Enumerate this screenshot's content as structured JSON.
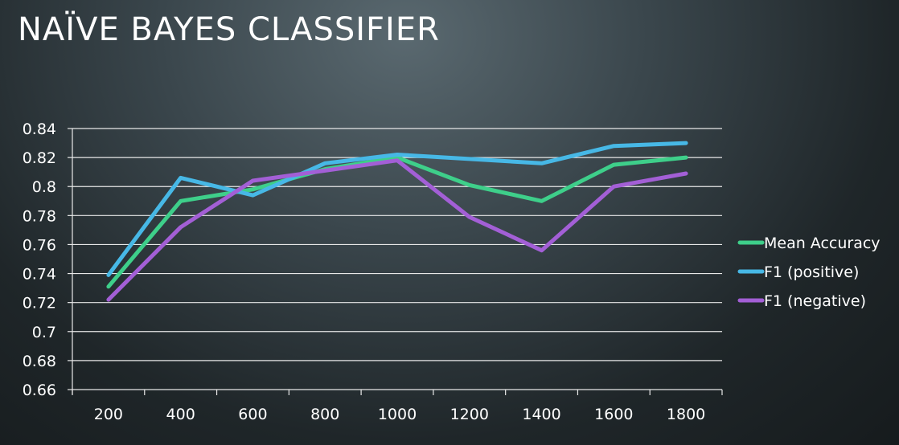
{
  "slide": {
    "title": "NAÏVE BAYES CLASSIFIER"
  },
  "chart_data": {
    "type": "line",
    "title": "",
    "xlabel": "",
    "ylabel": "",
    "x": [
      200,
      400,
      600,
      800,
      1000,
      1200,
      1400,
      1600,
      1800
    ],
    "x_tick_labels": [
      "200",
      "400",
      "600",
      "800",
      "1000",
      "1200",
      "1400",
      "1600",
      "1800"
    ],
    "ylim": [
      0.66,
      0.84
    ],
    "y_ticks": [
      0.66,
      0.68,
      0.7,
      0.72,
      0.74,
      0.76,
      0.78,
      0.8,
      0.82,
      0.84
    ],
    "y_tick_labels": [
      "0.66",
      "0.68",
      "0.7",
      "0.72",
      "0.74",
      "0.76",
      "0.78",
      "0.8",
      "0.82",
      "0.84"
    ],
    "grid": "horizontal",
    "legend_position": "right",
    "series": [
      {
        "name": "Mean Accuracy",
        "color": "#3ecf8a",
        "values": [
          0.731,
          0.79,
          0.798,
          0.812,
          0.82,
          0.801,
          0.79,
          0.815,
          0.82
        ]
      },
      {
        "name": "F1 (positive)",
        "color": "#47b8e6",
        "values": [
          0.739,
          0.806,
          0.794,
          0.816,
          0.822,
          0.819,
          0.816,
          0.828,
          0.83
        ]
      },
      {
        "name": "F1 (negative)",
        "color": "#a35fd6",
        "values": [
          0.722,
          0.772,
          0.804,
          0.811,
          0.818,
          0.779,
          0.756,
          0.8,
          0.809
        ]
      }
    ]
  }
}
